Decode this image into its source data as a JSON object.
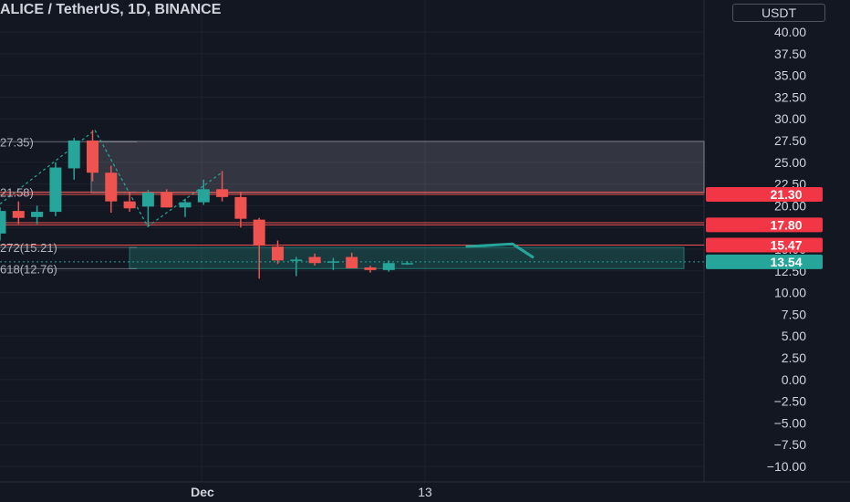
{
  "header": {
    "title": "ALICE / TetherUS, 1D, BINANCE",
    "currency": "USDT"
  },
  "colors": {
    "background": "#131722",
    "grid": "#1e222d",
    "up": "#26a69a",
    "down": "#ef5350",
    "text": "#d1d4dc"
  },
  "chart_data": {
    "type": "candlestick",
    "title": "ALICE / TetherUS, 1D, BINANCE",
    "ylim": [
      -10,
      40
    ],
    "y_ticks": [
      "40.00",
      "37.50",
      "35.00",
      "32.50",
      "30.00",
      "27.50",
      "25.00",
      "22.50",
      "20.00",
      "17.50",
      "15.00",
      "12.50",
      "10.00",
      "7.50",
      "5.00",
      "2.50",
      "0.00",
      "−2.50",
      "−5.00",
      "−7.50",
      "−10.00"
    ],
    "y_tick_values": [
      40,
      37.5,
      35,
      32.5,
      30,
      27.5,
      25,
      22.5,
      20,
      17.5,
      15,
      12.5,
      10,
      7.5,
      5,
      2.5,
      0,
      -2.5,
      -5,
      -7.5,
      -10
    ],
    "x_ticks": [
      {
        "label": "Dec",
        "index": 11
      },
      {
        "label": "13",
        "index": 23
      }
    ],
    "candles": [
      {
        "o": 16.8,
        "h": 19.8,
        "l": 16.0,
        "c": 19.4
      },
      {
        "o": 19.4,
        "h": 20.5,
        "l": 17.9,
        "c": 18.6
      },
      {
        "o": 18.7,
        "h": 20.0,
        "l": 17.9,
        "c": 19.3
      },
      {
        "o": 19.3,
        "h": 25.0,
        "l": 18.8,
        "c": 24.4
      },
      {
        "o": 24.3,
        "h": 27.8,
        "l": 23.0,
        "c": 27.5
      },
      {
        "o": 27.5,
        "h": 28.7,
        "l": 22.8,
        "c": 23.8
      },
      {
        "o": 23.8,
        "h": 24.6,
        "l": 19.2,
        "c": 20.5
      },
      {
        "o": 20.5,
        "h": 21.6,
        "l": 19.3,
        "c": 19.7
      },
      {
        "o": 19.9,
        "h": 21.8,
        "l": 17.6,
        "c": 21.5
      },
      {
        "o": 21.5,
        "h": 21.9,
        "l": 19.8,
        "c": 19.8
      },
      {
        "o": 19.8,
        "h": 20.8,
        "l": 18.7,
        "c": 20.4
      },
      {
        "o": 20.4,
        "h": 23.0,
        "l": 20.1,
        "c": 21.9
      },
      {
        "o": 21.9,
        "h": 24.0,
        "l": 20.5,
        "c": 21.0
      },
      {
        "o": 21.0,
        "h": 21.6,
        "l": 17.5,
        "c": 18.5
      },
      {
        "o": 18.4,
        "h": 18.6,
        "l": 11.6,
        "c": 15.4
      },
      {
        "o": 15.3,
        "h": 16.0,
        "l": 13.3,
        "c": 13.7
      },
      {
        "o": 13.7,
        "h": 14.1,
        "l": 11.9,
        "c": 13.8
      },
      {
        "o": 14.1,
        "h": 14.5,
        "l": 13.1,
        "c": 13.4
      },
      {
        "o": 13.5,
        "h": 14.0,
        "l": 12.6,
        "c": 13.6
      },
      {
        "o": 14.1,
        "h": 14.6,
        "l": 12.9,
        "c": 12.8
      },
      {
        "o": 12.9,
        "h": 13.1,
        "l": 12.3,
        "c": 12.6
      },
      {
        "o": 12.6,
        "h": 13.7,
        "l": 12.4,
        "c": 13.4
      },
      {
        "o": 13.3,
        "h": 13.6,
        "l": 13.2,
        "c": 13.4
      }
    ],
    "zones": [
      {
        "top": 27.4,
        "bottom": 21.5,
        "color": "#b2b5be",
        "opacity": 0.2
      },
      {
        "top": 15.21,
        "bottom": 12.76,
        "color": "#26a69a",
        "opacity": 0.25
      }
    ],
    "horizontal_lines": [
      {
        "value": 21.3,
        "color": "#ef5350"
      },
      {
        "value": 21.55,
        "color": "#ef5350"
      },
      {
        "value": 17.8,
        "color": "#ef5350"
      },
      {
        "value": 18.05,
        "color": "#ef5350"
      },
      {
        "value": 15.47,
        "color": "#ef5350"
      },
      {
        "value": 13.54,
        "color": "#26a69a"
      }
    ],
    "fib_labels": [
      "27.35)",
      "21.58)",
      "272(15.21)",
      "618(12.76)"
    ],
    "fib_values": [
      27.35,
      21.58,
      15.21,
      12.76
    ],
    "price_labels": [
      {
        "text": "21.30",
        "value": 21.3,
        "color": "#f23645"
      },
      {
        "text": "17.80",
        "value": 17.8,
        "color": "#f23645"
      },
      {
        "text": "15.47",
        "value": 15.47,
        "color": "#f23645"
      },
      {
        "text": "13.54",
        "value": 13.54,
        "color": "#26a69a"
      }
    ]
  }
}
